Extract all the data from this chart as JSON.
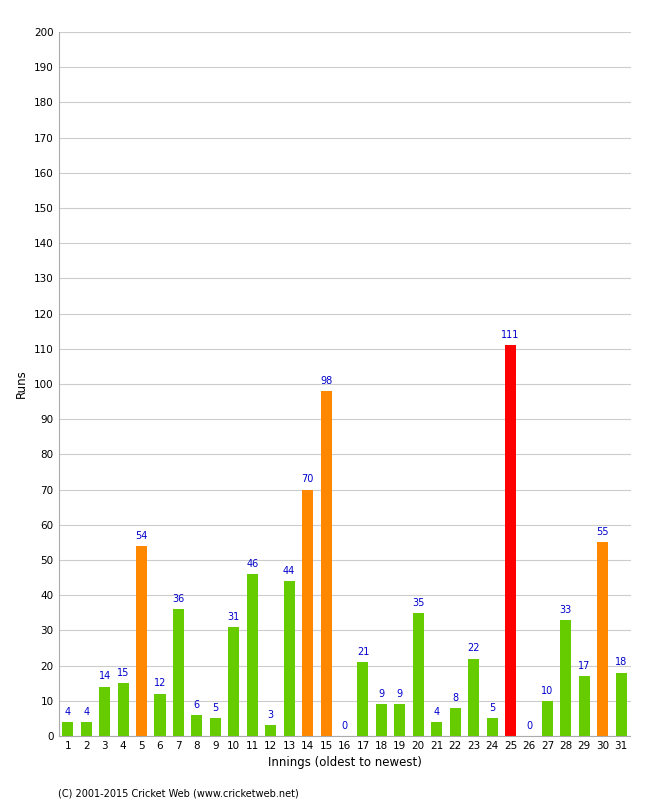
{
  "innings": [
    1,
    2,
    3,
    4,
    5,
    6,
    7,
    8,
    9,
    10,
    11,
    12,
    13,
    14,
    15,
    16,
    17,
    18,
    19,
    20,
    21,
    22,
    23,
    24,
    25,
    26,
    27,
    28,
    29,
    30,
    31
  ],
  "values": [
    4,
    4,
    14,
    15,
    54,
    12,
    36,
    6,
    5,
    31,
    46,
    3,
    44,
    70,
    98,
    0,
    21,
    9,
    9,
    35,
    4,
    8,
    22,
    5,
    111,
    0,
    10,
    33,
    17,
    55,
    18
  ],
  "colors": [
    "#66cc00",
    "#66cc00",
    "#66cc00",
    "#66cc00",
    "#ff8800",
    "#66cc00",
    "#66cc00",
    "#66cc00",
    "#66cc00",
    "#66cc00",
    "#66cc00",
    "#66cc00",
    "#66cc00",
    "#ff8800",
    "#ff8800",
    "#66cc00",
    "#66cc00",
    "#66cc00",
    "#66cc00",
    "#66cc00",
    "#66cc00",
    "#66cc00",
    "#66cc00",
    "#66cc00",
    "#ff0000",
    "#66cc00",
    "#66cc00",
    "#66cc00",
    "#66cc00",
    "#ff8800",
    "#66cc00"
  ],
  "xlabel": "Innings (oldest to newest)",
  "ylabel": "Runs",
  "ylim": [
    0,
    200
  ],
  "yticks": [
    0,
    10,
    20,
    30,
    40,
    50,
    60,
    70,
    80,
    90,
    100,
    110,
    120,
    130,
    140,
    150,
    160,
    170,
    180,
    190,
    200
  ],
  "label_color": "#0000cc",
  "bg_color": "#ffffff",
  "grid_color": "#cccccc",
  "footer": "(C) 2001-2015 Cricket Web (www.cricketweb.net)"
}
